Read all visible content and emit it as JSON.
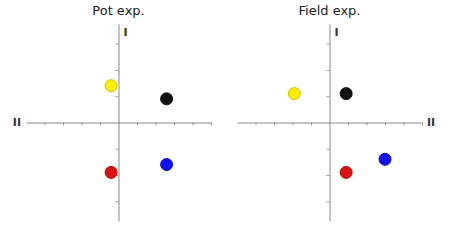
{
  "chart_data": [
    {
      "type": "scatter",
      "title": "Pot exp.",
      "xlabel": "II",
      "ylabel": "I",
      "x": [
        -0.08,
        0.52,
        -0.08,
        0.52
      ],
      "y": [
        0.28,
        0.18,
        -0.38,
        -0.32
      ],
      "colors": [
        "#ffee00",
        "#111111",
        "#dd1111",
        "#1111ee"
      ],
      "xlim": [
        -1.0,
        1.0
      ],
      "ylim": [
        -0.75,
        0.75
      ],
      "xticks": [
        -0.8,
        -0.6,
        -0.4,
        -0.2,
        0.2,
        0.4,
        0.6,
        0.8,
        1.0
      ],
      "yticks": [
        -0.6,
        -0.4,
        -0.2,
        0.2,
        0.4,
        0.6
      ],
      "tick_labels": false
    },
    {
      "type": "scatter",
      "title": "Field exp.",
      "xlabel": "II",
      "ylabel": "I",
      "x": [
        -0.38,
        0.18,
        0.18,
        0.6
      ],
      "y": [
        0.22,
        0.22,
        -0.38,
        -0.28
      ],
      "colors": [
        "#ffee00",
        "#111111",
        "#dd1111",
        "#1111ee"
      ],
      "xlim": [
        -1.0,
        1.0
      ],
      "ylim": [
        -0.75,
        0.75
      ],
      "xticks": [
        -0.8,
        -0.6,
        -0.4,
        -0.2,
        0.2,
        0.4,
        0.6,
        0.8,
        1.0
      ],
      "yticks": [
        -0.6,
        -0.4,
        -0.2,
        0.2,
        0.4,
        0.6
      ],
      "tick_labels": false
    }
  ]
}
